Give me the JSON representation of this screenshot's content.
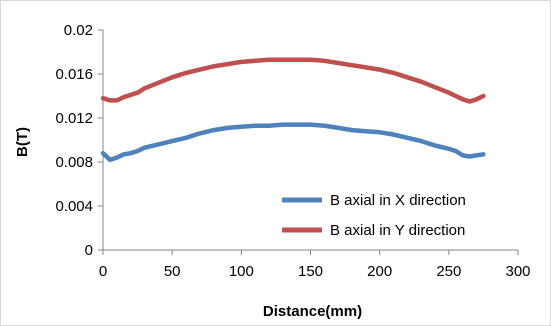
{
  "chart_data": {
    "type": "line",
    "title": "",
    "xlabel": "Distance(mm)",
    "ylabel": "B(T)",
    "xlim": [
      0,
      300
    ],
    "ylim": [
      0,
      0.02
    ],
    "xticks": [
      "0",
      "50",
      "100",
      "150",
      "200",
      "250",
      "300"
    ],
    "yticks": [
      "0",
      "0.004",
      "0.008",
      "0.012",
      "0.016",
      "0.02"
    ],
    "grid": false,
    "legend_position": "bottom-right",
    "series": [
      {
        "name": "B axial in X direction",
        "color": "#4f81bd",
        "x": [
          0,
          5,
          10,
          15,
          20,
          25,
          30,
          40,
          50,
          60,
          70,
          80,
          90,
          100,
          110,
          120,
          130,
          140,
          150,
          160,
          170,
          180,
          190,
          200,
          210,
          220,
          230,
          240,
          250,
          255,
          260,
          265,
          270,
          275
        ],
        "y": [
          0.0088,
          0.0082,
          0.0084,
          0.0087,
          0.0088,
          0.009,
          0.0093,
          0.0096,
          0.0099,
          0.0102,
          0.0106,
          0.0109,
          0.0111,
          0.0112,
          0.0113,
          0.0113,
          0.0114,
          0.0114,
          0.0114,
          0.0113,
          0.0111,
          0.0109,
          0.0108,
          0.0107,
          0.0105,
          0.0102,
          0.0099,
          0.0095,
          0.0092,
          0.009,
          0.0086,
          0.0085,
          0.0086,
          0.0087
        ]
      },
      {
        "name": "B axial in Y direction",
        "color": "#c0504d",
        "x": [
          0,
          5,
          10,
          15,
          20,
          25,
          30,
          40,
          50,
          60,
          70,
          80,
          90,
          100,
          110,
          120,
          130,
          140,
          150,
          160,
          170,
          180,
          190,
          200,
          210,
          220,
          230,
          240,
          250,
          255,
          260,
          265,
          270,
          275
        ],
        "y": [
          0.0138,
          0.0136,
          0.0136,
          0.0139,
          0.0141,
          0.0143,
          0.0147,
          0.0152,
          0.0157,
          0.0161,
          0.0164,
          0.0167,
          0.0169,
          0.0171,
          0.0172,
          0.0173,
          0.0173,
          0.0173,
          0.0173,
          0.0172,
          0.017,
          0.0168,
          0.0166,
          0.0164,
          0.0161,
          0.0157,
          0.0153,
          0.0148,
          0.0143,
          0.014,
          0.0137,
          0.0135,
          0.0137,
          0.014
        ]
      }
    ]
  }
}
